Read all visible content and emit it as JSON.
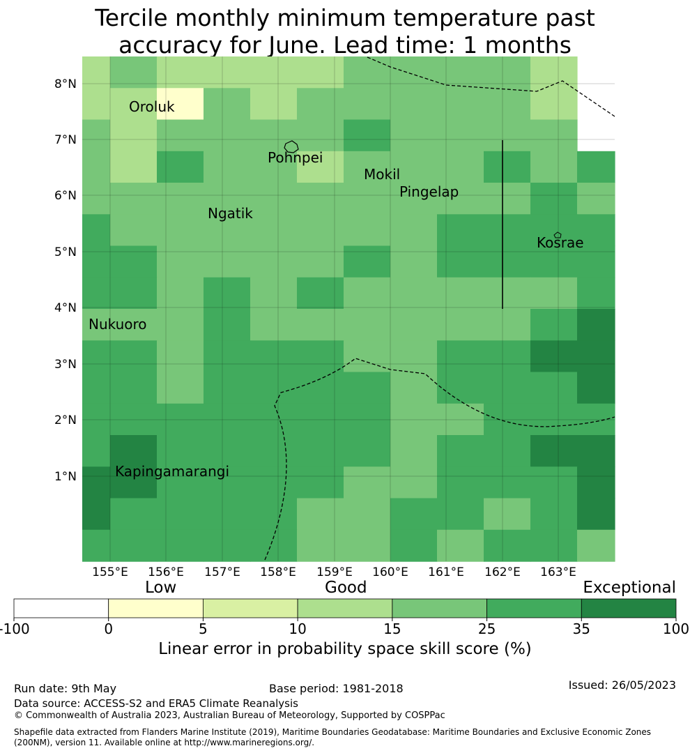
{
  "title_line1": "Tercile monthly minimum temperature past",
  "title_line2": "accuracy for June. Lead time: 1 months",
  "map": {
    "lon_ticks": [
      "155°E",
      "156°E",
      "157°E",
      "158°E",
      "159°E",
      "160°E",
      "161°E",
      "162°E",
      "163°E"
    ],
    "lat_ticks": [
      "8°N",
      "7°N",
      "6°N",
      "5°N",
      "4°N",
      "3°N",
      "2°N",
      "1°N"
    ],
    "places": [
      "Oroluk",
      "Pohnpei",
      "Mokil",
      "Pingelap",
      "Ngatik",
      "Kosrae",
      "Nukuoro",
      "Kapingamarangi"
    ],
    "grid_colors": [
      [
        "#addf8e",
        "#78c679",
        "#addf8e",
        "#addf8e",
        "#addf8e",
        "#addf8e",
        "#78c679",
        "#78c679",
        "#78c679",
        "#78c679",
        "#addf8e"
      ],
      [
        "#addf8e",
        "#addf8e",
        "#ffffcc",
        "#78c679",
        "#addf8e",
        "#78c679",
        "#78c679",
        "#78c679",
        "#78c679",
        "#78c679",
        "#addf8e"
      ],
      [
        "#78c679",
        "#addf8e",
        "#78c679",
        "#78c679",
        "#78c679",
        "#78c679",
        "#41ab5d",
        "#78c679",
        "#78c679",
        "#78c679",
        "#78c679"
      ],
      [
        "#78c679",
        "#addf8e",
        "#41ab5d",
        "#78c679",
        "#78c679",
        "#addf8e",
        "#78c679",
        "#78c679",
        "#78c679",
        "#41ab5d",
        "#78c679",
        "#41ab5d"
      ],
      [
        "#78c679",
        "#78c679",
        "#78c679",
        "#78c679",
        "#78c679",
        "#78c679",
        "#78c679",
        "#78c679",
        "#78c679",
        "#78c679",
        "#41ab5d",
        "#78c679"
      ],
      [
        "#41ab5d",
        "#78c679",
        "#78c679",
        "#78c679",
        "#78c679",
        "#78c679",
        "#78c679",
        "#78c679",
        "#41ab5d",
        "#41ab5d",
        "#41ab5d",
        "#41ab5d"
      ],
      [
        "#41ab5d",
        "#41ab5d",
        "#78c679",
        "#78c679",
        "#78c679",
        "#78c679",
        "#41ab5d",
        "#78c679",
        "#41ab5d",
        "#41ab5d",
        "#41ab5d",
        "#41ab5d"
      ],
      [
        "#41ab5d",
        "#41ab5d",
        "#78c679",
        "#41ab5d",
        "#78c679",
        "#41ab5d",
        "#78c679",
        "#78c679",
        "#78c679",
        "#78c679",
        "#78c679",
        "#41ab5d"
      ],
      [
        "#78c679",
        "#78c679",
        "#78c679",
        "#41ab5d",
        "#78c679",
        "#78c679",
        "#78c679",
        "#78c679",
        "#78c679",
        "#78c679",
        "#41ab5d",
        "#238443"
      ],
      [
        "#41ab5d",
        "#41ab5d",
        "#78c679",
        "#41ab5d",
        "#41ab5d",
        "#41ab5d",
        "#78c679",
        "#78c679",
        "#41ab5d",
        "#41ab5d",
        "#238443",
        "#238443"
      ],
      [
        "#41ab5d",
        "#41ab5d",
        "#78c679",
        "#41ab5d",
        "#41ab5d",
        "#41ab5d",
        "#41ab5d",
        "#78c679",
        "#41ab5d",
        "#41ab5d",
        "#41ab5d",
        "#238443"
      ],
      [
        "#41ab5d",
        "#41ab5d",
        "#41ab5d",
        "#41ab5d",
        "#41ab5d",
        "#41ab5d",
        "#41ab5d",
        "#78c679",
        "#78c679",
        "#41ab5d",
        "#41ab5d",
        "#41ab5d"
      ],
      [
        "#41ab5d",
        "#238443",
        "#41ab5d",
        "#41ab5d",
        "#41ab5d",
        "#41ab5d",
        "#41ab5d",
        "#78c679",
        "#41ab5d",
        "#41ab5d",
        "#238443",
        "#238443"
      ],
      [
        "#238443",
        "#238443",
        "#41ab5d",
        "#41ab5d",
        "#41ab5d",
        "#41ab5d",
        "#78c679",
        "#78c679",
        "#41ab5d",
        "#41ab5d",
        "#41ab5d",
        "#238443"
      ],
      [
        "#238443",
        "#41ab5d",
        "#41ab5d",
        "#41ab5d",
        "#41ab5d",
        "#78c679",
        "#78c679",
        "#41ab5d",
        "#41ab5d",
        "#78c679",
        "#41ab5d",
        "#238443"
      ],
      [
        "#41ab5d",
        "#41ab5d",
        "#41ab5d",
        "#41ab5d",
        "#41ab5d",
        "#78c679",
        "#78c679",
        "#41ab5d",
        "#78c679",
        "#41ab5d",
        "#41ab5d",
        "#78c679"
      ]
    ]
  },
  "legend": {
    "low": "Low",
    "good": "Good",
    "exceptional": "Exceptional",
    "ticks": [
      "-100",
      "0",
      "5",
      "10",
      "15",
      "25",
      "35",
      "100"
    ],
    "colors": [
      "#ffffff",
      "#ffffcc",
      "#d9f0a3",
      "#addf8e",
      "#78c679",
      "#41ab5d",
      "#238443"
    ],
    "title": "Linear error in probability space skill score (%)"
  },
  "footer": {
    "run_date": "Run date: 9th May",
    "base_period": "Base period: 1981-2018",
    "issued": "Issued: 26/05/2023",
    "data_source": "Data source: ACCESS-S2 and ERA5 Climate Reanalysis",
    "copyright": "© Commonwealth of Australia 2023, Australian Bureau of Meteorology, Supported by COSPPac",
    "shapefile": "Shapefile data extracted from Flanders Marine Institute (2019), Maritime Boundaries Geodatabase: Maritime Boundaries and Exclusive Economic Zones (200NM), version 11. Available online at http://www.marineregions.org/."
  }
}
